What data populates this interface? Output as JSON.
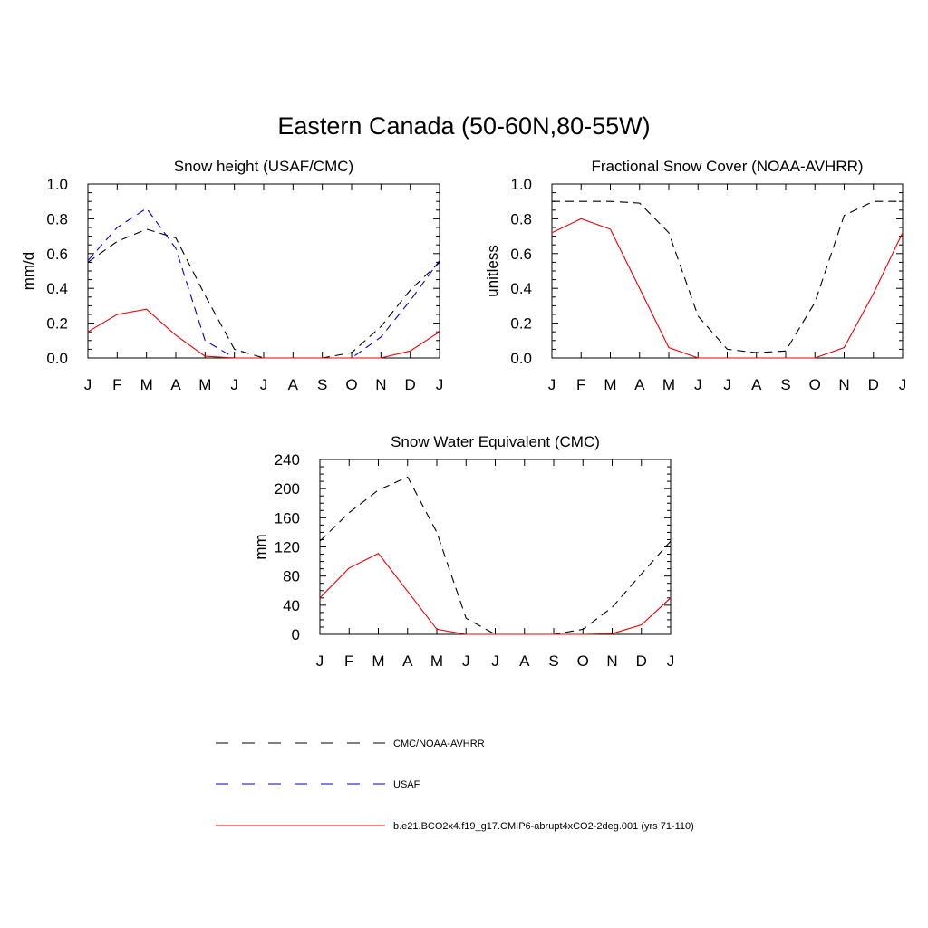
{
  "figure_title": "Eastern Canada (50-60N,80-55W)",
  "legend": {
    "entries": [
      {
        "label": "CMC/NOAA-AVHRR",
        "color": "#000000",
        "dash": "dashed"
      },
      {
        "label": "USAF",
        "color": "#0000cc",
        "dash": "dashed"
      },
      {
        "label": "b.e21.BCO2x4.f19_g17.CMIP6-abrupt4xCO2-2deg.001 (yrs 71-110)",
        "color": "#ee0000",
        "dash": "solid"
      }
    ]
  },
  "chart_data": [
    {
      "id": "snow-height",
      "type": "line",
      "title": "Snow height (USAF/CMC)",
      "xlabel": "",
      "ylabel": "mm/d",
      "categories": [
        "J",
        "F",
        "M",
        "A",
        "M",
        "J",
        "J",
        "A",
        "S",
        "O",
        "N",
        "D",
        "J"
      ],
      "ylim": [
        0,
        1.0
      ],
      "yticks": [
        "0.0",
        "0.2",
        "0.4",
        "0.6",
        "0.8",
        "1.0"
      ],
      "ytick_values": [
        0,
        0.2,
        0.4,
        0.6,
        0.8,
        1.0
      ],
      "series": [
        {
          "name": "CMC/NOAA-AVHRR",
          "color": "#000000",
          "dash": "dashed",
          "values": [
            0.55,
            0.67,
            0.74,
            0.69,
            0.36,
            0.05,
            0.0,
            0.0,
            0.0,
            0.03,
            0.18,
            0.39,
            0.55
          ]
        },
        {
          "name": "USAF",
          "color": "#0000cc",
          "dash": "dashed",
          "values": [
            0.56,
            0.75,
            0.86,
            0.63,
            0.1,
            0.0,
            0.0,
            0.0,
            0.0,
            0.0,
            0.12,
            0.33,
            0.56
          ]
        },
        {
          "name": "b.e21.BCO2x4.f19_g17.CMIP6-abrupt4xCO2-2deg.001 (yrs 71-110)",
          "color": "#ee0000",
          "dash": "solid",
          "values": [
            0.15,
            0.25,
            0.28,
            0.13,
            0.01,
            0.0,
            0.0,
            0.0,
            0.0,
            0.0,
            0.0,
            0.04,
            0.15
          ]
        }
      ]
    },
    {
      "id": "fractional-snow-cover",
      "type": "line",
      "title": "Fractional Snow Cover (NOAA-AVHRR)",
      "xlabel": "",
      "ylabel": "unitless",
      "categories": [
        "J",
        "F",
        "M",
        "A",
        "M",
        "J",
        "J",
        "A",
        "S",
        "O",
        "N",
        "D",
        "J"
      ],
      "ylim": [
        0,
        1.0
      ],
      "yticks": [
        "0.0",
        "0.2",
        "0.4",
        "0.6",
        "0.8",
        "1.0"
      ],
      "ytick_values": [
        0,
        0.2,
        0.4,
        0.6,
        0.8,
        1.0
      ],
      "series": [
        {
          "name": "CMC/NOAA-AVHRR",
          "color": "#000000",
          "dash": "dashed",
          "values": [
            0.9,
            0.9,
            0.9,
            0.89,
            0.72,
            0.24,
            0.05,
            0.03,
            0.04,
            0.32,
            0.82,
            0.9,
            0.9
          ]
        },
        {
          "name": "b.e21.BCO2x4.f19_g17.CMIP6-abrupt4xCO2-2deg.001 (yrs 71-110)",
          "color": "#ee0000",
          "dash": "solid",
          "values": [
            0.72,
            0.8,
            0.74,
            0.4,
            0.06,
            0.0,
            0.0,
            0.0,
            0.0,
            0.0,
            0.06,
            0.37,
            0.72
          ]
        }
      ]
    },
    {
      "id": "snow-water-equivalent",
      "type": "line",
      "title": "Snow Water Equivalent (CMC)",
      "xlabel": "",
      "ylabel": "mm",
      "categories": [
        "J",
        "F",
        "M",
        "A",
        "M",
        "J",
        "J",
        "A",
        "S",
        "O",
        "N",
        "D",
        "J"
      ],
      "ylim": [
        0,
        240
      ],
      "yticks": [
        "0",
        "40",
        "80",
        "120",
        "160",
        "200",
        "240"
      ],
      "ytick_values": [
        0,
        40,
        80,
        120,
        160,
        200,
        240
      ],
      "series": [
        {
          "name": "CMC/NOAA-AVHRR",
          "color": "#000000",
          "dash": "dashed",
          "values": [
            128,
            167,
            198,
            216,
            140,
            22,
            0,
            0,
            0,
            7,
            37,
            83,
            128
          ]
        },
        {
          "name": "b.e21.BCO2x4.f19_g17.CMIP6-abrupt4xCO2-2deg.001 (yrs 71-110)",
          "color": "#ee0000",
          "dash": "solid",
          "values": [
            50,
            91,
            111,
            59,
            7,
            0,
            0,
            0,
            0,
            0,
            1,
            13,
            50
          ]
        }
      ]
    }
  ]
}
